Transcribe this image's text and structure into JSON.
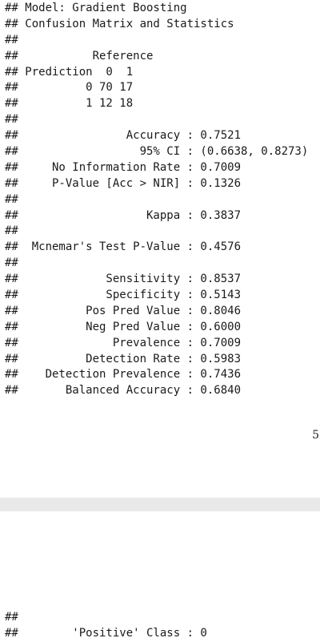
{
  "output_top": [
    "## Model: Gradient Boosting",
    "## Confusion Matrix and Statistics",
    "##",
    "##           Reference",
    "## Prediction  0  1",
    "##          0 70 17",
    "##          1 12 18",
    "##",
    "##                Accuracy : 0.7521",
    "##                  95% CI : (0.6638, 0.8273)",
    "##     No Information Rate : 0.7009",
    "##     P-Value [Acc > NIR] : 0.1326",
    "##",
    "##                   Kappa : 0.3837",
    "##",
    "##  Mcnemar's Test P-Value : 0.4576",
    "##",
    "##             Sensitivity : 0.8537",
    "##             Specificity : 0.5143",
    "##          Pos Pred Value : 0.8046",
    "##          Neg Pred Value : 0.6000",
    "##              Prevalence : 0.7009",
    "##          Detection Rate : 0.5983",
    "##    Detection Prevalence : 0.7436",
    "##       Balanced Accuracy : 0.6840"
  ],
  "page_number": "5",
  "output_bottom": [
    "##",
    "##        'Positive' Class : 0"
  ]
}
